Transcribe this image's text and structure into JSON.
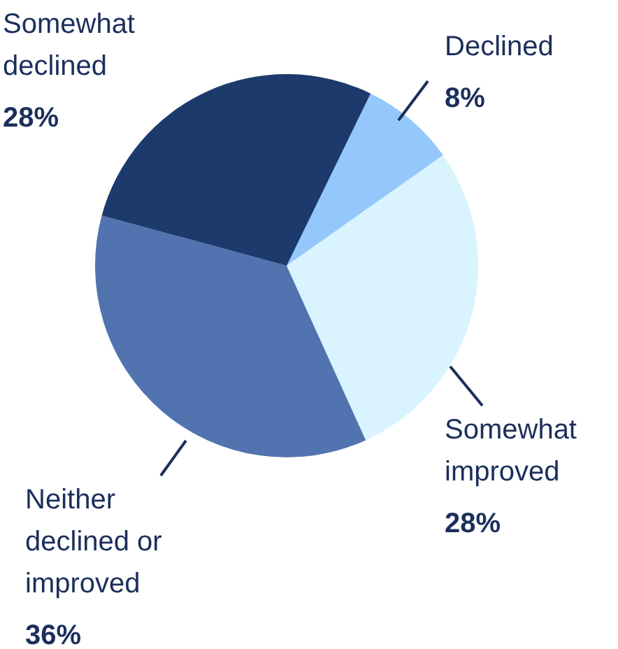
{
  "chart_data": {
    "type": "pie",
    "categories": [
      "Declined",
      "Somewhat improved",
      "Neither declined or improved",
      "Somewhat declined"
    ],
    "values": [
      8,
      28,
      36,
      28
    ],
    "colors": [
      "#94c7fb",
      "#d9f4fe",
      "#5173b0",
      "#1c3a6b"
    ],
    "value_labels": [
      "8%",
      "28%",
      "36%",
      "28%"
    ],
    "legend": false
  }
}
